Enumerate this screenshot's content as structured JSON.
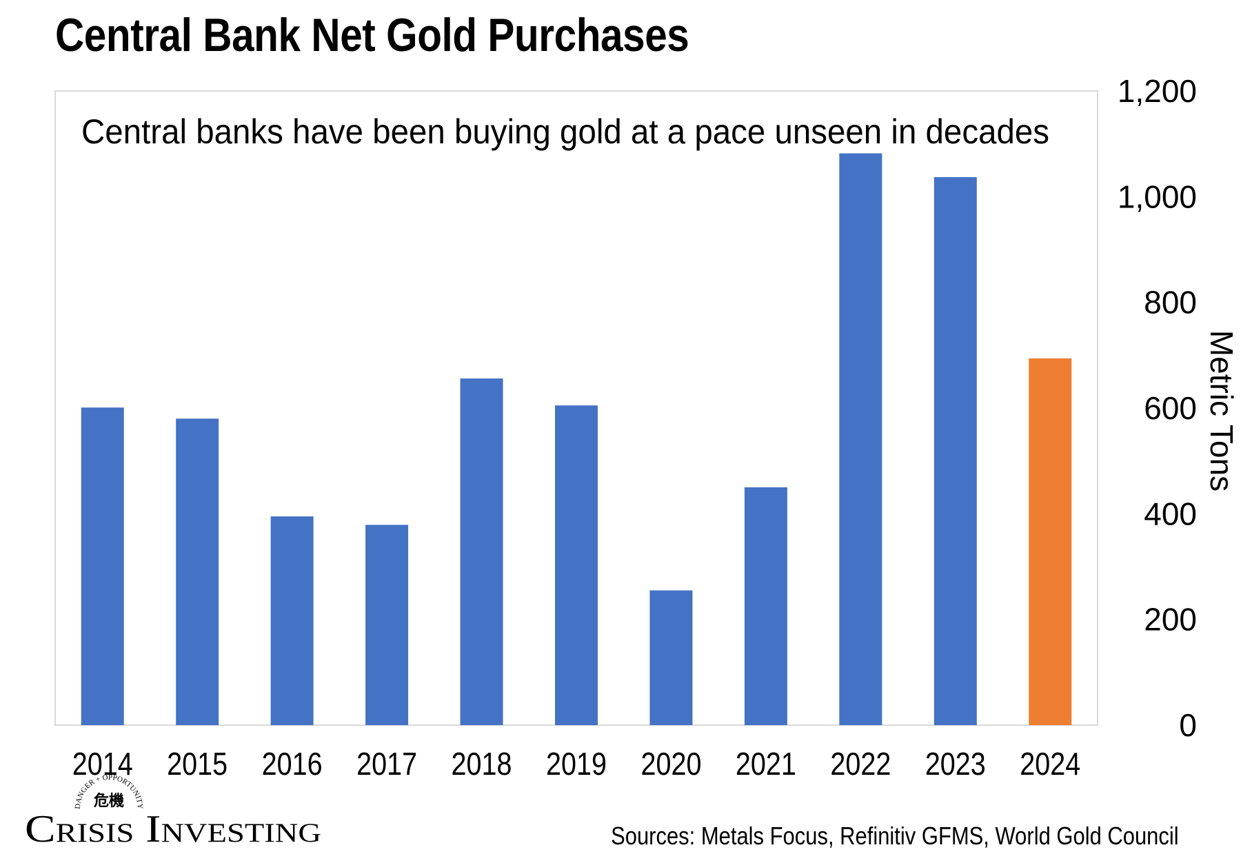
{
  "chart_data": {
    "type": "bar",
    "title": "Central Bank Net Gold Purchases",
    "subtitle": "Central banks have been buying gold at a pace unseen in decades",
    "categories": [
      "2014",
      "2015",
      "2016",
      "2017",
      "2018",
      "2019",
      "2020",
      "2021",
      "2022",
      "2023",
      "2024"
    ],
    "values": [
      601,
      580,
      395,
      379,
      656,
      605,
      255,
      450,
      1082,
      1037,
      694
    ],
    "highlight_index": 10,
    "ylabel": "Metric Tons",
    "ylim": [
      0,
      1200
    ],
    "yticks": [
      {
        "value": 0,
        "label": "0"
      },
      {
        "value": 200,
        "label": "200"
      },
      {
        "value": 400,
        "label": "400"
      },
      {
        "value": 600,
        "label": "600"
      },
      {
        "value": 800,
        "label": "800"
      },
      {
        "value": 1000,
        "label": "1,000"
      },
      {
        "value": 1200,
        "label": "1,200"
      }
    ],
    "yaxis_position": "right",
    "grid": false,
    "source": "Sources: Metals Focus, Refinitiv GFMS, World Gold Council"
  },
  "colors": {
    "bar": "#4472C4",
    "highlight": "#ED7D31",
    "border": "#D9D9D9"
  },
  "logo": {
    "name": "Crisis Investing",
    "arc_text": "DANGER + OPPORTUNITY",
    "glyph_text": "危機"
  }
}
